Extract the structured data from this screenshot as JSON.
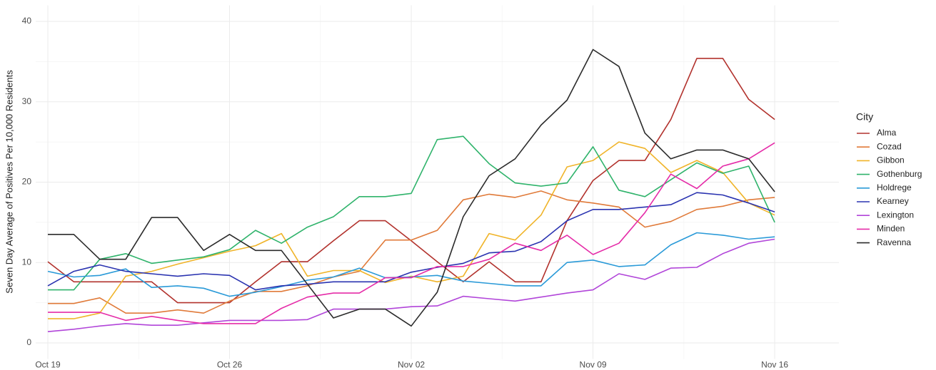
{
  "chart_data": {
    "type": "line",
    "y_label": "Seven Day Average of Positives Per 10,000 Residents",
    "legend_title": "City",
    "legend_position": "right",
    "grid": true,
    "x": [
      "Oct 19",
      "Oct 20",
      "Oct 21",
      "Oct 22",
      "Oct 23",
      "Oct 24",
      "Oct 25",
      "Oct 26",
      "Oct 27",
      "Oct 28",
      "Oct 29",
      "Oct 30",
      "Oct 31",
      "Nov 01",
      "Nov 02",
      "Nov 03",
      "Nov 04",
      "Nov 05",
      "Nov 06",
      "Nov 07",
      "Nov 08",
      "Nov 09",
      "Nov 10",
      "Nov 11",
      "Nov 12",
      "Nov 13",
      "Nov 14",
      "Nov 15",
      "Nov 16"
    ],
    "xticks": [
      "Oct 19",
      "Oct 26",
      "Nov 02",
      "Nov 09",
      "Nov 16"
    ],
    "ylim": [
      -2,
      42
    ],
    "yticks": [
      0,
      10,
      20,
      30,
      40
    ],
    "series": [
      {
        "name": "Alma",
        "color": "#b2322d",
        "values": [
          10.1,
          7.6,
          7.6,
          7.6,
          7.6,
          5.0,
          5.0,
          5.0,
          7.6,
          10.1,
          10.1,
          12.7,
          15.2,
          15.2,
          12.7,
          10.1,
          7.6,
          10.1,
          7.6,
          7.6,
          15.2,
          20.2,
          22.7,
          22.7,
          27.8,
          35.4,
          35.4,
          30.3,
          27.8
        ]
      },
      {
        "name": "Cozad",
        "color": "#e07a39",
        "values": [
          4.9,
          4.9,
          5.6,
          3.7,
          3.7,
          4.1,
          3.7,
          5.2,
          6.4,
          6.4,
          7.1,
          8.2,
          8.9,
          12.8,
          12.8,
          14.0,
          17.8,
          18.5,
          18.1,
          18.9,
          17.8,
          17.4,
          16.9,
          14.4,
          15.1,
          16.6,
          17.0,
          17.8,
          18.1
        ]
      },
      {
        "name": "Gibbon",
        "color": "#f0b429",
        "values": [
          3.0,
          3.0,
          3.7,
          8.3,
          8.9,
          9.8,
          10.6,
          11.4,
          12.1,
          13.6,
          8.3,
          9.0,
          9.0,
          7.5,
          8.3,
          7.6,
          8.3,
          13.6,
          12.8,
          15.9,
          21.9,
          22.7,
          25.0,
          24.2,
          21.2,
          22.7,
          21.2,
          17.4,
          15.9
        ]
      },
      {
        "name": "Gothenburg",
        "color": "#2fb36b",
        "values": [
          6.6,
          6.6,
          10.4,
          11.1,
          9.9,
          10.3,
          10.7,
          11.6,
          14.0,
          12.4,
          14.4,
          15.7,
          18.2,
          18.2,
          18.6,
          25.3,
          25.7,
          22.3,
          19.9,
          19.5,
          19.9,
          24.4,
          19.0,
          18.2,
          20.3,
          22.4,
          21.1,
          22.0,
          15.0
        ]
      },
      {
        "name": "Holdrege",
        "color": "#2a9ad8",
        "values": [
          8.9,
          8.2,
          8.4,
          9.2,
          6.9,
          7.1,
          6.8,
          5.8,
          6.3,
          7.0,
          7.8,
          8.2,
          9.3,
          8.1,
          8.2,
          8.4,
          7.7,
          7.4,
          7.1,
          7.1,
          10.0,
          10.3,
          9.5,
          9.7,
          12.2,
          13.7,
          13.4,
          12.9,
          13.2
        ]
      },
      {
        "name": "Kearney",
        "color": "#2a33b0",
        "values": [
          7.1,
          8.9,
          9.7,
          8.9,
          8.6,
          8.3,
          8.6,
          8.4,
          6.6,
          7.1,
          7.3,
          7.6,
          7.6,
          7.6,
          8.8,
          9.4,
          9.9,
          11.2,
          11.4,
          12.6,
          15.2,
          16.6,
          16.6,
          16.9,
          17.2,
          18.7,
          18.4,
          17.4,
          16.3
        ]
      },
      {
        "name": "Lexington",
        "color": "#b145d9",
        "values": [
          1.4,
          1.7,
          2.1,
          2.4,
          2.2,
          2.2,
          2.5,
          2.8,
          2.8,
          2.8,
          2.9,
          4.2,
          4.2,
          4.2,
          4.5,
          4.6,
          5.8,
          5.5,
          5.2,
          5.7,
          6.2,
          6.6,
          8.6,
          7.9,
          9.3,
          9.4,
          11.1,
          12.4,
          12.9
        ]
      },
      {
        "name": "Minden",
        "color": "#e52ca8",
        "values": [
          3.8,
          3.8,
          3.8,
          2.8,
          3.3,
          2.8,
          2.4,
          2.4,
          2.4,
          4.3,
          5.7,
          6.2,
          6.2,
          8.1,
          8.1,
          9.5,
          9.5,
          10.4,
          12.4,
          11.5,
          13.4,
          11.0,
          12.4,
          16.2,
          21.0,
          19.2,
          22.0,
          22.9,
          24.9
        ]
      },
      {
        "name": "Ravenna",
        "color": "#2b2b2b",
        "values": [
          13.5,
          13.5,
          10.4,
          10.4,
          15.6,
          15.6,
          11.5,
          13.5,
          11.5,
          11.5,
          7.3,
          3.1,
          4.2,
          4.2,
          2.1,
          6.3,
          15.7,
          20.8,
          22.9,
          27.1,
          30.2,
          36.5,
          34.4,
          26.1,
          22.9,
          24.0,
          24.0,
          22.9,
          18.8
        ]
      }
    ]
  }
}
